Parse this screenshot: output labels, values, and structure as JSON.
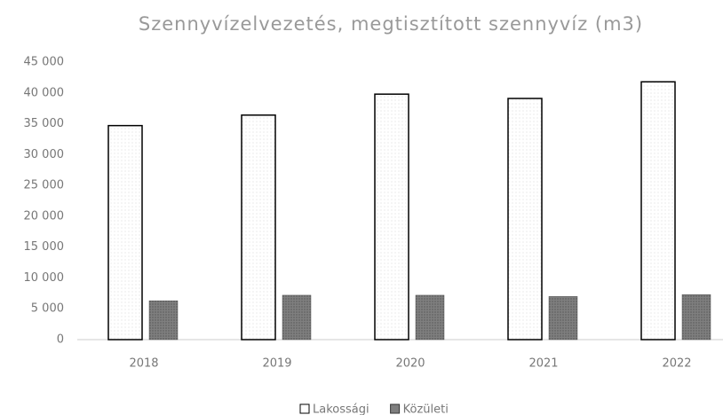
{
  "chart_data": {
    "type": "bar",
    "title": "Szennyvízelvezetés, megtisztított szennyvíz (m3)",
    "categories": [
      "2018",
      "2019",
      "2020",
      "2021",
      "2022"
    ],
    "series": [
      {
        "name": "Lakossági",
        "color": "#ffffff",
        "values": [
          34700,
          36400,
          39800,
          39100,
          41800
        ]
      },
      {
        "name": "Közületi",
        "color": "#7f7f7f",
        "values": [
          6300,
          7200,
          7200,
          7000,
          7300
        ]
      }
    ],
    "ylim": [
      0,
      45000
    ],
    "yticks": [
      0,
      {
        "value": 5000,
        "label": "5 000"
      },
      {
        "value": 10000,
        "label": "10 000"
      },
      {
        "value": 15000,
        "label": "15 000"
      },
      {
        "value": 20000,
        "label": "20 000"
      },
      {
        "value": 25000,
        "label": "25 000"
      },
      {
        "value": 30000,
        "label": "30 000"
      },
      {
        "value": 35000,
        "label": "35 000"
      },
      {
        "value": 40000,
        "label": "40 000"
      },
      {
        "value": 45000,
        "label": "45 000"
      }
    ],
    "legend": "bottom"
  }
}
